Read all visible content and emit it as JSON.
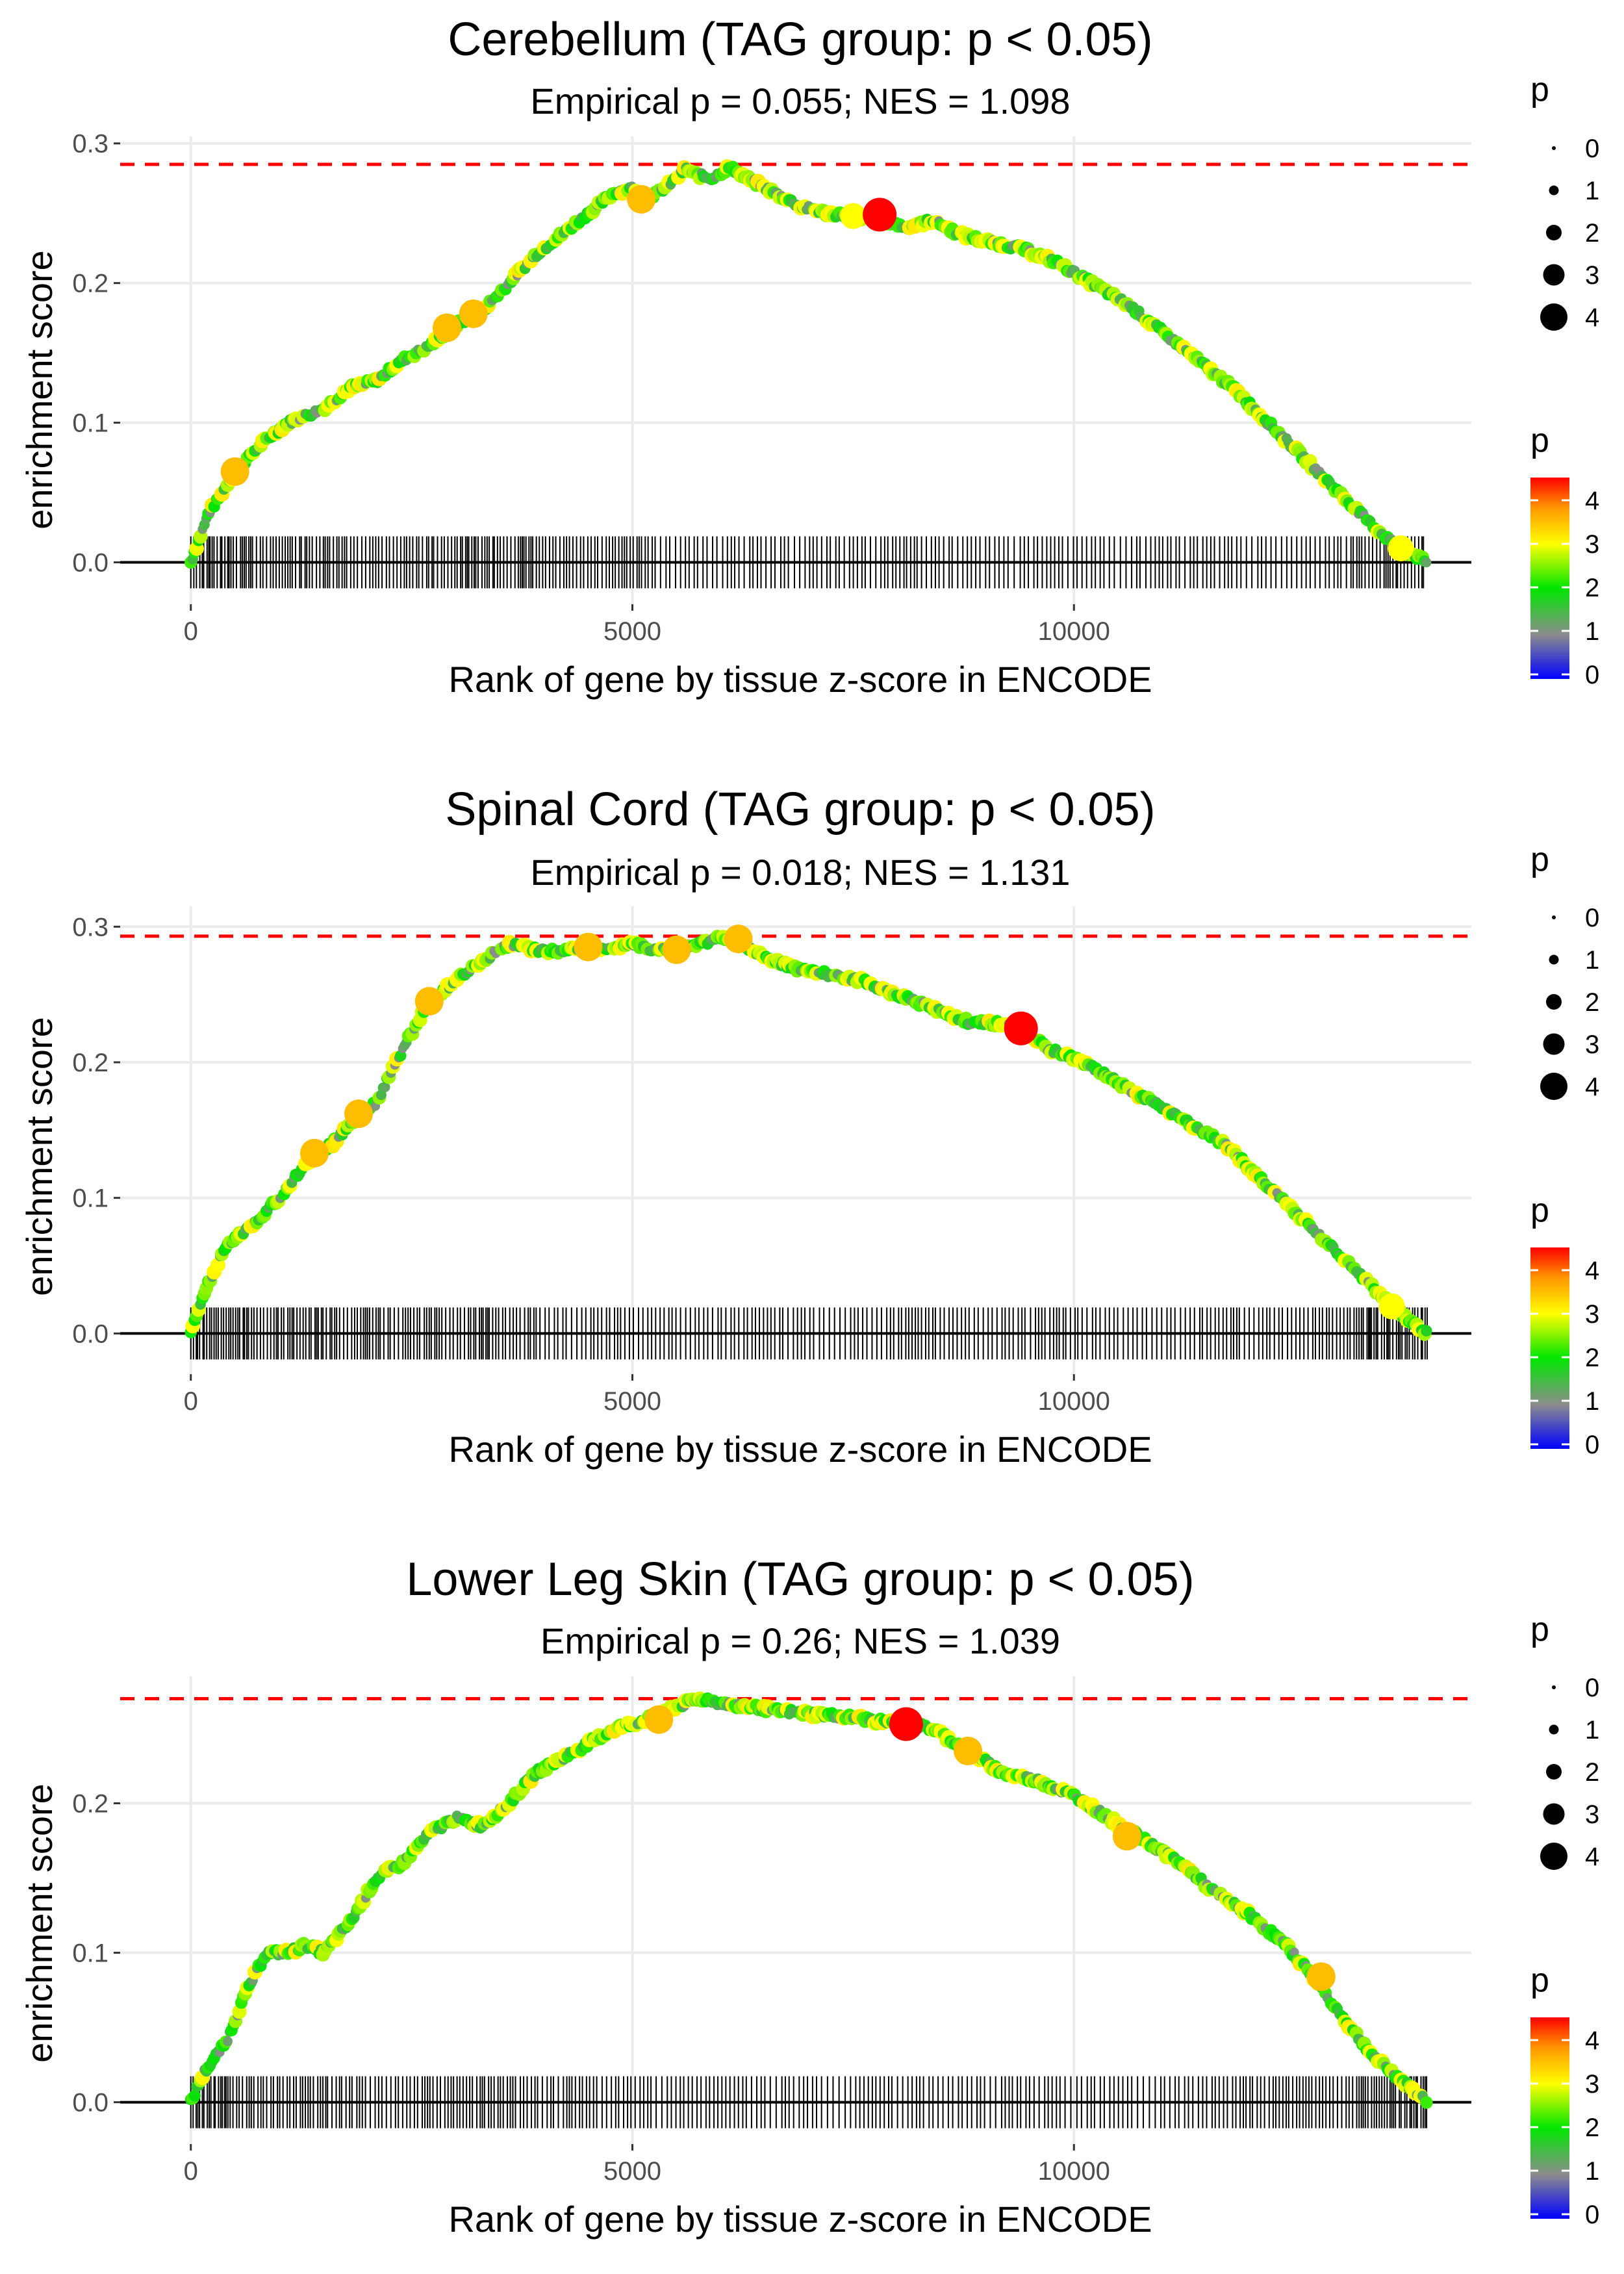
{
  "figure": {
    "xlabel": "Rank of gene by tissue z-score in ENCODE",
    "ylabel": "enrichment score",
    "legend": {
      "size_title": "p",
      "size_values": [
        "0",
        "1",
        "2",
        "3",
        "4"
      ],
      "color_title": "p",
      "color_ticks": [
        "4",
        "3",
        "2",
        "1",
        "0"
      ]
    }
  },
  "chart_data": [
    {
      "type": "line",
      "title": "Cerebellum (TAG group: p < 0.05)",
      "subtitle": "Empirical p = 0.055; NES = 1.098",
      "xlabel": "Rank of gene by tissue z-score in ENCODE",
      "ylabel": "enrichment score",
      "xlim": [
        -800,
        14500
      ],
      "ylim": [
        -0.03,
        0.305
      ],
      "x_ticks": [
        0,
        5000,
        10000
      ],
      "y_ticks": [
        0.0,
        0.1,
        0.2,
        0.3
      ],
      "x_tick_labels": [
        "0",
        "5000",
        "10000"
      ],
      "y_tick_labels": [
        "0.0",
        "0.1",
        "0.2",
        "0.3"
      ],
      "max_es": 0.285,
      "n_genes": 14000,
      "series": [
        {
          "name": "running enrichment score",
          "x": [
            0,
            200,
            500,
            800,
            1100,
            1300,
            1500,
            1800,
            2100,
            2400,
            2700,
            3000,
            3300,
            3600,
            3900,
            4200,
            4500,
            4800,
            5000,
            5100,
            5300,
            5500,
            5600,
            5700,
            5900,
            6100,
            6300,
            6600,
            6900,
            7200,
            7500,
            7800,
            8100,
            8400,
            8700,
            9000,
            9400,
            9800,
            10200,
            10600,
            11000,
            11400,
            11800,
            12200,
            12600,
            13000,
            13400,
            13700,
            14000
          ],
          "y": [
            0.0,
            0.035,
            0.065,
            0.085,
            0.1,
            0.105,
            0.11,
            0.125,
            0.13,
            0.145,
            0.155,
            0.17,
            0.18,
            0.2,
            0.22,
            0.235,
            0.25,
            0.265,
            0.268,
            0.26,
            0.265,
            0.275,
            0.282,
            0.278,
            0.275,
            0.283,
            0.275,
            0.265,
            0.255,
            0.25,
            0.248,
            0.245,
            0.24,
            0.245,
            0.235,
            0.23,
            0.225,
            0.215,
            0.2,
            0.185,
            0.165,
            0.145,
            0.125,
            0.1,
            0.075,
            0.05,
            0.025,
            0.01,
            0.0
          ]
        }
      ],
      "highlight_points": [
        {
          "x": 500,
          "y": 0.065,
          "p": 3.5
        },
        {
          "x": 2900,
          "y": 0.168,
          "p": 3.5
        },
        {
          "x": 3200,
          "y": 0.178,
          "p": 3.5
        },
        {
          "x": 5100,
          "y": 0.26,
          "p": 3.5
        },
        {
          "x": 7500,
          "y": 0.248,
          "p": 3
        },
        {
          "x": 7800,
          "y": 0.249,
          "p": 4.5
        },
        {
          "x": 13700,
          "y": 0.01,
          "p": 3
        }
      ],
      "hit_density": [
        1.0,
        0.9,
        0.9,
        0.85,
        0.8,
        0.85,
        0.9,
        0.95,
        0.9,
        0.7,
        0.7,
        0.8,
        0.55,
        0.55,
        0.6,
        0.5,
        0.55,
        0.65,
        0.7,
        0.6,
        0.55,
        0.5,
        0.5,
        0.5,
        0.55,
        0.6,
        0.55,
        0.5,
        0.5,
        0.6,
        0.9,
        0.95
      ]
    },
    {
      "type": "line",
      "title": "Spinal Cord (TAG group: p < 0.05)",
      "subtitle": "Empirical p = 0.018; NES = 1.131",
      "xlabel": "Rank of gene by tissue z-score in ENCODE",
      "ylabel": "enrichment score",
      "xlim": [
        -800,
        14500
      ],
      "ylim": [
        -0.03,
        0.315
      ],
      "x_ticks": [
        0,
        5000,
        10000
      ],
      "y_ticks": [
        0.0,
        0.1,
        0.2,
        0.3
      ],
      "x_tick_labels": [
        "0",
        "5000",
        "10000"
      ],
      "y_tick_labels": [
        "0.0",
        "0.1",
        "0.2",
        "0.3"
      ],
      "max_es": 0.293,
      "n_genes": 14000,
      "series": [
        {
          "name": "running enrichment score",
          "x": [
            0,
            150,
            400,
            700,
            1000,
            1300,
            1600,
            1900,
            2100,
            2400,
            2700,
            3000,
            3300,
            3600,
            3900,
            4200,
            4500,
            4800,
            5000,
            5200,
            5500,
            5800,
            6000,
            6200,
            6500,
            6800,
            7200,
            7600,
            8000,
            8400,
            8800,
            9200,
            9400,
            9700,
            10100,
            10500,
            10900,
            11300,
            11700,
            12100,
            12500,
            12900,
            13300,
            13600,
            14000
          ],
          "y": [
            0.0,
            0.03,
            0.065,
            0.08,
            0.1,
            0.125,
            0.14,
            0.16,
            0.17,
            0.21,
            0.245,
            0.26,
            0.275,
            0.287,
            0.283,
            0.282,
            0.285,
            0.285,
            0.287,
            0.284,
            0.283,
            0.288,
            0.292,
            0.288,
            0.278,
            0.27,
            0.265,
            0.26,
            0.25,
            0.24,
            0.23,
            0.228,
            0.225,
            0.21,
            0.2,
            0.185,
            0.17,
            0.155,
            0.14,
            0.115,
            0.09,
            0.065,
            0.04,
            0.02,
            0.0
          ]
        }
      ],
      "highlight_points": [
        {
          "x": 1400,
          "y": 0.133,
          "p": 3.5
        },
        {
          "x": 1900,
          "y": 0.162,
          "p": 3.5
        },
        {
          "x": 2700,
          "y": 0.245,
          "p": 3.5
        },
        {
          "x": 4500,
          "y": 0.285,
          "p": 3.5
        },
        {
          "x": 5500,
          "y": 0.283,
          "p": 3.5
        },
        {
          "x": 6200,
          "y": 0.291,
          "p": 3.5
        },
        {
          "x": 9400,
          "y": 0.225,
          "p": 4.5
        },
        {
          "x": 13600,
          "y": 0.02,
          "p": 3
        }
      ],
      "hit_density": [
        1.0,
        0.95,
        0.9,
        0.9,
        0.85,
        0.8,
        0.85,
        0.9,
        0.8,
        0.6,
        0.7,
        0.65,
        0.6,
        0.6,
        0.55,
        0.6,
        0.55,
        0.65,
        0.7,
        0.7,
        0.6,
        0.6,
        0.7,
        0.55,
        0.5,
        0.6,
        0.7,
        0.7,
        0.65,
        0.7,
        0.95,
        1.0
      ]
    },
    {
      "type": "line",
      "title": "Lower Leg Skin (TAG group: p < 0.05)",
      "subtitle": "Empirical p = 0.26; NES = 1.039",
      "xlabel": "Rank of gene by tissue z-score in ENCODE",
      "ylabel": "enrichment score",
      "xlim": [
        -800,
        14500
      ],
      "ylim": [
        -0.028,
        0.285
      ],
      "x_ticks": [
        0,
        5000,
        10000
      ],
      "y_ticks": [
        0.0,
        0.1,
        0.2
      ],
      "x_tick_labels": [
        "0",
        "5000",
        "10000"
      ],
      "y_tick_labels": [
        "0.0",
        "0.1",
        "0.2"
      ],
      "max_es": 0.27,
      "n_genes": 14000,
      "series": [
        {
          "name": "running enrichment score",
          "x": [
            0,
            150,
            400,
            600,
            850,
            1100,
            1300,
            1500,
            1800,
            2100,
            2400,
            2700,
            3000,
            3300,
            3600,
            3900,
            4200,
            4500,
            4800,
            5100,
            5300,
            5500,
            5800,
            6000,
            6300,
            6600,
            7000,
            7400,
            7800,
            8100,
            8400,
            8800,
            9200,
            9600,
            10000,
            10400,
            10800,
            11200,
            11600,
            12000,
            12400,
            12700,
            13000,
            13400,
            13700,
            14000
          ],
          "y": [
            0.0,
            0.02,
            0.04,
            0.07,
            0.1,
            0.1,
            0.105,
            0.1,
            0.12,
            0.15,
            0.16,
            0.18,
            0.19,
            0.185,
            0.2,
            0.22,
            0.23,
            0.24,
            0.25,
            0.255,
            0.26,
            0.265,
            0.27,
            0.267,
            0.265,
            0.262,
            0.26,
            0.258,
            0.255,
            0.253,
            0.25,
            0.235,
            0.22,
            0.215,
            0.205,
            0.19,
            0.175,
            0.16,
            0.14,
            0.125,
            0.105,
            0.085,
            0.06,
            0.03,
            0.015,
            0.0
          ]
        }
      ],
      "highlight_points": [
        {
          "x": 5300,
          "y": 0.256,
          "p": 3.5
        },
        {
          "x": 8100,
          "y": 0.253,
          "p": 4.5
        },
        {
          "x": 8800,
          "y": 0.235,
          "p": 3.5
        },
        {
          "x": 10600,
          "y": 0.178,
          "p": 3.5
        },
        {
          "x": 12800,
          "y": 0.084,
          "p": 3.5
        }
      ],
      "hit_density": [
        1.0,
        0.85,
        0.8,
        0.85,
        0.75,
        0.7,
        0.75,
        0.8,
        0.75,
        0.7,
        0.65,
        0.6,
        0.55,
        0.6,
        0.55,
        0.55,
        0.5,
        0.55,
        0.55,
        0.55,
        0.5,
        0.55,
        0.5,
        0.55,
        0.5,
        0.55,
        0.6,
        0.7,
        0.75,
        0.8,
        0.9,
        0.95
      ]
    }
  ]
}
